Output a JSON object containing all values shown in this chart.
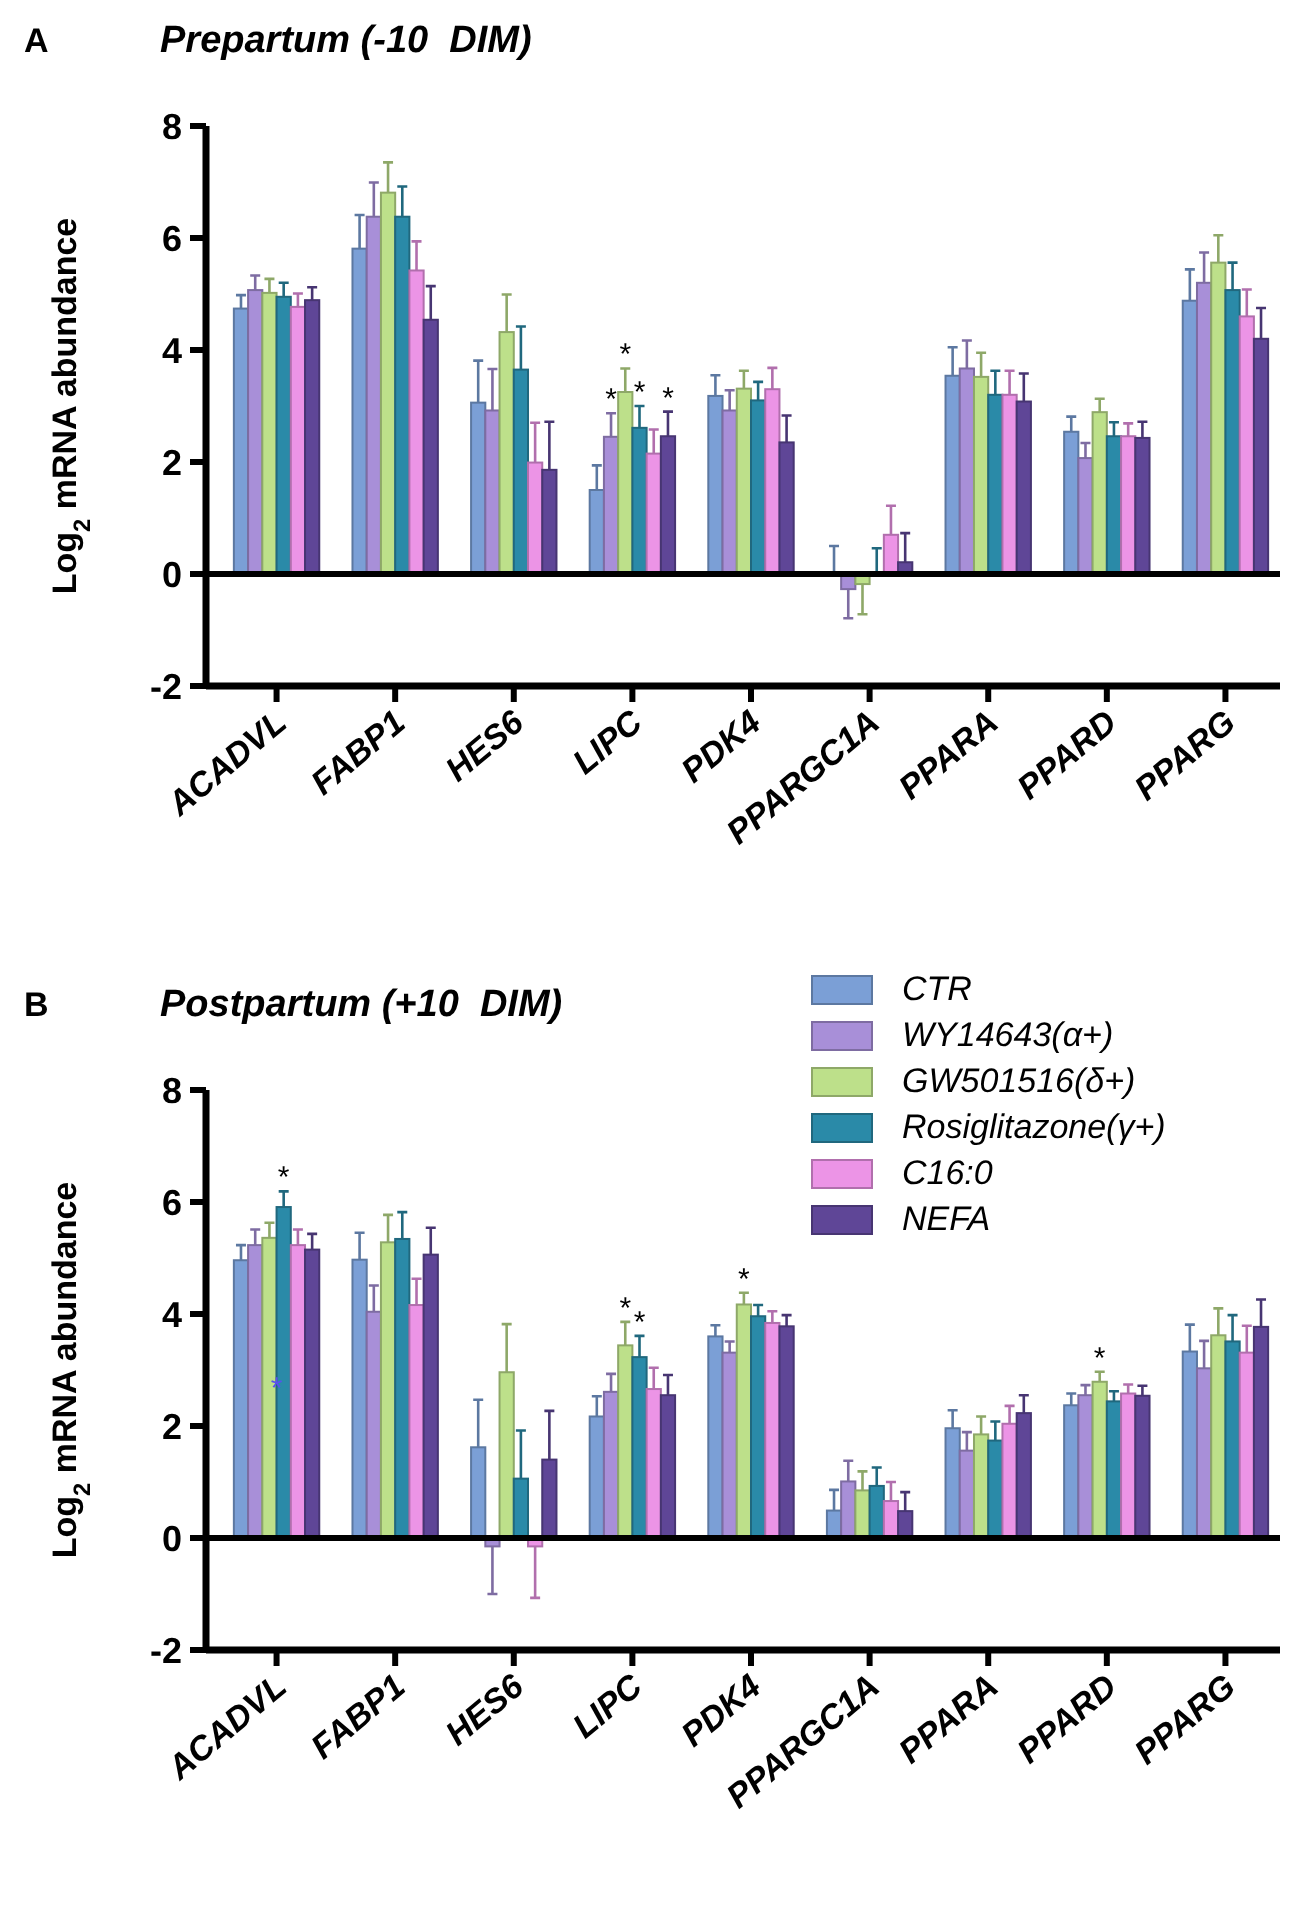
{
  "chart_data": [
    {
      "type": "bar",
      "title": "Prepartum (-10  DIM)",
      "ylabel": "Log$_{2}$ mRNA abundance",
      "annotations": [
        "A"
      ],
      "categories": [
        "ACADVL",
        "FABP1",
        "HES6",
        "LIPC",
        "PDK4",
        "PPARGC1A",
        "PPARA",
        "PPARD",
        "PPARG"
      ],
      "ylim": [
        -2,
        8
      ],
      "yticks": [
        -2,
        0,
        2,
        4,
        6,
        8
      ],
      "legend": false,
      "series": [
        {
          "color": "#7b9fd6",
          "values": [
            4.74,
            5.81,
            3.06,
            1.5,
            3.18,
            0,
            3.54,
            2.54,
            4.88
          ],
          "errors": [
            [
              4.74,
              4.98
            ],
            [
              5.81,
              6.41
            ],
            [
              3.06,
              3.81
            ],
            [
              1.5,
              1.94
            ],
            [
              3.18,
              3.55
            ],
            [
              0,
              0.5
            ],
            [
              3.54,
              4.05
            ],
            [
              2.54,
              2.81
            ],
            [
              4.88,
              5.44
            ]
          ]
        },
        {
          "color": "#a88fd8",
          "values": [
            5.07,
            6.38,
            2.92,
            2.45,
            2.92,
            -0.27,
            3.67,
            2.07,
            5.2
          ],
          "errors": [
            [
              5.07,
              5.33
            ],
            [
              6.38,
              6.99
            ],
            [
              2.92,
              3.66
            ],
            [
              2.45,
              2.87
            ],
            [
              2.92,
              3.28
            ],
            [
              -0.79,
              -0.27
            ],
            [
              3.67,
              4.17
            ],
            [
              2.07,
              2.34
            ],
            [
              5.2,
              5.74
            ]
          ],
          "value_labels": [
            null,
            null,
            null,
            "*",
            null,
            null,
            null,
            null,
            null
          ]
        },
        {
          "color": "#bde08a",
          "values": [
            5.02,
            6.81,
            4.32,
            3.25,
            3.31,
            -0.18,
            3.52,
            2.89,
            5.56
          ],
          "errors": [
            [
              5.02,
              5.27
            ],
            [
              6.81,
              7.35
            ],
            [
              4.32,
              4.99
            ],
            [
              3.25,
              3.67
            ],
            [
              3.31,
              3.63
            ],
            [
              -0.72,
              -0.18
            ],
            [
              3.52,
              3.95
            ],
            [
              2.89,
              3.13
            ],
            [
              5.56,
              6.05
            ]
          ],
          "value_labels": [
            null,
            null,
            null,
            "*",
            null,
            null,
            null,
            null,
            null
          ]
        },
        {
          "color": "#2a8aa8",
          "values": [
            4.95,
            6.38,
            3.65,
            2.61,
            3.1,
            0,
            3.2,
            2.46,
            5.07
          ],
          "errors": [
            [
              4.95,
              5.2
            ],
            [
              6.38,
              6.92
            ],
            [
              3.65,
              4.42
            ],
            [
              2.61,
              3.0
            ],
            [
              3.1,
              3.43
            ],
            [
              0,
              0.46
            ],
            [
              3.2,
              3.63
            ],
            [
              2.46,
              2.71
            ],
            [
              5.07,
              5.56
            ]
          ],
          "value_labels": [
            null,
            null,
            null,
            "*",
            null,
            null,
            null,
            null,
            null
          ]
        },
        {
          "color": "#ec94e6",
          "values": [
            4.77,
            5.42,
            1.99,
            2.15,
            3.3,
            0.7,
            3.2,
            2.46,
            4.6
          ],
          "errors": [
            [
              4.77,
              5.01
            ],
            [
              5.42,
              5.94
            ],
            [
              1.99,
              2.7
            ],
            [
              2.15,
              2.58
            ],
            [
              3.3,
              3.68
            ],
            [
              0.7,
              1.22
            ],
            [
              3.2,
              3.63
            ],
            [
              2.46,
              2.69
            ],
            [
              4.6,
              5.08
            ]
          ]
        },
        {
          "color": "#5f4697",
          "values": [
            4.89,
            4.54,
            1.86,
            2.46,
            2.35,
            0.21,
            3.08,
            2.43,
            4.2
          ],
          "errors": [
            [
              4.89,
              5.12
            ],
            [
              4.54,
              5.14
            ],
            [
              1.86,
              2.72
            ],
            [
              2.46,
              2.9
            ],
            [
              2.35,
              2.83
            ],
            [
              0.21,
              0.73
            ],
            [
              3.08,
              3.58
            ],
            [
              2.43,
              2.72
            ],
            [
              4.2,
              4.75
            ]
          ],
          "value_labels": [
            null,
            null,
            null,
            "*",
            null,
            null,
            null,
            null,
            null
          ]
        }
      ]
    },
    {
      "type": "bar",
      "title": "Postpartum (+10  DIM)",
      "ylabel": "Log$_{2}$ mRNA abundance",
      "annotations": [
        "B",
        {
          "text": "*",
          "x": "ACADVL",
          "y": 2.72
        }
      ],
      "categories": [
        "ACADVL",
        "FABP1",
        "HES6",
        "LIPC",
        "PDK4",
        "PPARGC1A",
        "PPARA",
        "PPARD",
        "PPARG"
      ],
      "ylim": [
        -2,
        8
      ],
      "yticks": [
        -2,
        0,
        2,
        4,
        6,
        8
      ],
      "legend": "top right",
      "series": [
        {
          "name": "CTR",
          "color": "#7b9fd6",
          "values": [
            4.96,
            4.97,
            1.62,
            2.17,
            3.6,
            0.49,
            1.96,
            2.37,
            3.33
          ],
          "errors": [
            [
              4.96,
              5.23
            ],
            [
              4.97,
              5.45
            ],
            [
              1.62,
              2.47
            ],
            [
              2.17,
              2.53
            ],
            [
              3.6,
              3.8
            ],
            [
              0.49,
              0.86
            ],
            [
              1.96,
              2.28
            ],
            [
              2.37,
              2.58
            ],
            [
              3.33,
              3.81
            ]
          ]
        },
        {
          "name": "WY14643(α+)",
          "color": "#a88fd8",
          "values": [
            5.23,
            4.04,
            -0.15,
            2.61,
            3.31,
            1.01,
            1.56,
            2.55,
            3.03
          ],
          "errors": [
            [
              5.23,
              5.51
            ],
            [
              4.04,
              4.51
            ],
            [
              -1.0,
              -0.15
            ],
            [
              2.61,
              2.93
            ],
            [
              3.31,
              3.51
            ],
            [
              1.01,
              1.38
            ],
            [
              1.56,
              1.89
            ],
            [
              2.55,
              2.73
            ],
            [
              3.03,
              3.52
            ]
          ]
        },
        {
          "name": "GW501516(δ+)",
          "color": "#bde08a",
          "values": [
            5.36,
            5.28,
            2.96,
            3.44,
            4.17,
            0.85,
            1.85,
            2.79,
            3.62
          ],
          "errors": [
            [
              5.36,
              5.63
            ],
            [
              5.28,
              5.77
            ],
            [
              2.96,
              3.82
            ],
            [
              3.44,
              3.86
            ],
            [
              4.17,
              4.38
            ],
            [
              0.85,
              1.19
            ],
            [
              1.85,
              2.17
            ],
            [
              2.79,
              2.97
            ],
            [
              3.62,
              4.1
            ]
          ],
          "value_labels": [
            null,
            null,
            null,
            "*",
            "*",
            null,
            null,
            "*",
            null
          ]
        },
        {
          "name": "Rosiglitazone(γ+)",
          "color": "#2a8aa8",
          "values": [
            5.91,
            5.34,
            1.06,
            3.23,
            3.96,
            0.93,
            1.74,
            2.44,
            3.51
          ],
          "errors": [
            [
              5.91,
              6.19
            ],
            [
              5.34,
              5.82
            ],
            [
              1.06,
              1.92
            ],
            [
              3.23,
              3.61
            ],
            [
              3.96,
              4.16
            ],
            [
              0.93,
              1.26
            ],
            [
              1.74,
              2.08
            ],
            [
              2.44,
              2.62
            ],
            [
              3.51,
              3.98
            ]
          ],
          "value_labels": [
            "*",
            null,
            null,
            "*",
            null,
            null,
            null,
            null,
            null
          ]
        },
        {
          "name": "C16:0",
          "color": "#ec94e6",
          "values": [
            5.23,
            4.16,
            -0.15,
            2.66,
            3.84,
            0.66,
            2.04,
            2.58,
            3.31
          ],
          "errors": [
            [
              5.23,
              5.51
            ],
            [
              4.16,
              4.63
            ],
            [
              -1.07,
              -0.15
            ],
            [
              2.66,
              3.04
            ],
            [
              3.84,
              4.05
            ],
            [
              0.66,
              1.0
            ],
            [
              2.04,
              2.36
            ],
            [
              2.58,
              2.74
            ],
            [
              3.31,
              3.79
            ]
          ]
        },
        {
          "name": "NEFA",
          "color": "#5f4697",
          "values": [
            5.15,
            5.06,
            1.4,
            2.55,
            3.78,
            0.48,
            2.23,
            2.54,
            3.77
          ],
          "errors": [
            [
              5.15,
              5.43
            ],
            [
              5.06,
              5.54
            ],
            [
              1.4,
              2.27
            ],
            [
              2.55,
              2.91
            ],
            [
              3.78,
              3.98
            ],
            [
              0.48,
              0.82
            ],
            [
              2.23,
              2.55
            ],
            [
              2.54,
              2.72
            ],
            [
              3.77,
              4.26
            ]
          ]
        }
      ]
    }
  ]
}
